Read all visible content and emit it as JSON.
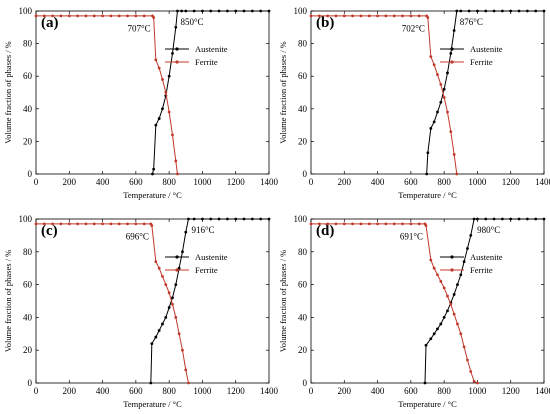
{
  "chart_data": [
    {
      "type": "line",
      "panel_label": "(a)",
      "xlabel": "Temperature / °C",
      "ylabel": "Volume fraction of phases / %",
      "xlim": [
        0,
        1400
      ],
      "ylim": [
        0,
        100
      ],
      "xticks": [
        0,
        200,
        400,
        600,
        800,
        1000,
        1200,
        1400
      ],
      "yticks": [
        0,
        20,
        40,
        60,
        80,
        100
      ],
      "legend_position": "top-right",
      "annotations": [
        {
          "text": "707°C",
          "x": 707,
          "y": 96
        },
        {
          "text": "850°C",
          "x": 850,
          "y": 100
        }
      ],
      "series": [
        {
          "name": "Austenite",
          "color": "#000000",
          "x": [
            700,
            707,
            720,
            740,
            760,
            780,
            800,
            820,
            840,
            850,
            875,
            900,
            950,
            1000,
            1050,
            1100,
            1150,
            1200,
            1250,
            1300,
            1350,
            1400
          ],
          "y": [
            0,
            3,
            30,
            34,
            40,
            48,
            60,
            74,
            90,
            100,
            100,
            100,
            100,
            100,
            100,
            100,
            100,
            100,
            100,
            100,
            100,
            100
          ]
        },
        {
          "name": "Ferrite",
          "color": "#c0392b",
          "x": [
            0,
            50,
            100,
            150,
            200,
            250,
            300,
            350,
            400,
            450,
            500,
            550,
            600,
            650,
            700,
            707,
            720,
            740,
            760,
            780,
            800,
            820,
            840,
            850
          ],
          "y": [
            97,
            97,
            97,
            97,
            97,
            97,
            97,
            97,
            97,
            97,
            97,
            97,
            97,
            97,
            97,
            96,
            70,
            65,
            58,
            50,
            38,
            24,
            8,
            0
          ]
        }
      ]
    },
    {
      "type": "line",
      "panel_label": "(b)",
      "xlabel": "Temperature / °C",
      "ylabel": "Volume fraction of phases / %",
      "xlim": [
        0,
        1400
      ],
      "ylim": [
        0,
        100
      ],
      "xticks": [
        0,
        200,
        400,
        600,
        800,
        1000,
        1200,
        1400
      ],
      "yticks": [
        0,
        20,
        40,
        60,
        80,
        100
      ],
      "legend_position": "top-right",
      "annotations": [
        {
          "text": "702°C",
          "x": 702,
          "y": 96
        },
        {
          "text": "876°C",
          "x": 876,
          "y": 100
        }
      ],
      "series": [
        {
          "name": "Austenite",
          "color": "#000000",
          "x": [
            695,
            702,
            720,
            740,
            760,
            780,
            800,
            820,
            840,
            860,
            876,
            900,
            950,
            1000,
            1050,
            1100,
            1150,
            1200,
            1250,
            1300,
            1350,
            1400
          ],
          "y": [
            0,
            13,
            28,
            32,
            38,
            44,
            52,
            62,
            74,
            88,
            100,
            100,
            100,
            100,
            100,
            100,
            100,
            100,
            100,
            100,
            100,
            100
          ]
        },
        {
          "name": "Ferrite",
          "color": "#c0392b",
          "x": [
            0,
            50,
            100,
            150,
            200,
            250,
            300,
            350,
            400,
            450,
            500,
            550,
            600,
            650,
            695,
            702,
            720,
            740,
            760,
            780,
            800,
            820,
            840,
            860,
            876
          ],
          "y": [
            97,
            97,
            97,
            97,
            97,
            97,
            97,
            97,
            97,
            97,
            97,
            97,
            97,
            97,
            97,
            96,
            72,
            67,
            61,
            55,
            47,
            38,
            26,
            12,
            0
          ]
        }
      ]
    },
    {
      "type": "line",
      "panel_label": "(c)",
      "xlabel": "Temperature / °C",
      "ylabel": "Volume fraction of phases / %",
      "xlim": [
        0,
        1400
      ],
      "ylim": [
        0,
        100
      ],
      "xticks": [
        0,
        200,
        400,
        600,
        800,
        1000,
        1200,
        1400
      ],
      "yticks": [
        0,
        20,
        40,
        60,
        80,
        100
      ],
      "legend_position": "top-right",
      "annotations": [
        {
          "text": "696°C",
          "x": 696,
          "y": 96
        },
        {
          "text": "916°C",
          "x": 916,
          "y": 100
        }
      ],
      "series": [
        {
          "name": "Austenite",
          "color": "#000000",
          "x": [
            690,
            696,
            720,
            740,
            760,
            780,
            800,
            820,
            840,
            860,
            880,
            900,
            916,
            950,
            1000,
            1050,
            1100,
            1150,
            1200,
            1250,
            1300,
            1350,
            1400
          ],
          "y": [
            0,
            24,
            28,
            32,
            36,
            40,
            46,
            52,
            60,
            70,
            80,
            92,
            100,
            100,
            100,
            100,
            100,
            100,
            100,
            100,
            100,
            100,
            100
          ]
        },
        {
          "name": "Ferrite",
          "color": "#c0392b",
          "x": [
            0,
            50,
            100,
            150,
            200,
            250,
            300,
            350,
            400,
            450,
            500,
            550,
            600,
            650,
            690,
            696,
            720,
            740,
            760,
            780,
            800,
            820,
            840,
            860,
            880,
            900,
            916
          ],
          "y": [
            97,
            97,
            97,
            97,
            97,
            97,
            97,
            97,
            97,
            97,
            97,
            97,
            97,
            97,
            97,
            96,
            74,
            70,
            65,
            60,
            55,
            48,
            40,
            30,
            20,
            8,
            0
          ]
        }
      ]
    },
    {
      "type": "line",
      "panel_label": "(d)",
      "xlabel": "Temperature / °C",
      "ylabel": "Volume fraction of phases / %",
      "xlim": [
        0,
        1400
      ],
      "ylim": [
        0,
        100
      ],
      "xticks": [
        0,
        200,
        400,
        600,
        800,
        1000,
        1200,
        1400
      ],
      "yticks": [
        0,
        20,
        40,
        60,
        80,
        100
      ],
      "legend_position": "top-right",
      "annotations": [
        {
          "text": "691°C",
          "x": 691,
          "y": 96
        },
        {
          "text": "980°C",
          "x": 980,
          "y": 100
        }
      ],
      "series": [
        {
          "name": "Austenite",
          "color": "#000000",
          "x": [
            685,
            691,
            720,
            740,
            760,
            780,
            800,
            820,
            840,
            860,
            880,
            900,
            920,
            940,
            960,
            980,
            1000,
            1050,
            1100,
            1150,
            1200,
            1250,
            1300,
            1350,
            1400
          ],
          "y": [
            0,
            23,
            27,
            30,
            33,
            36,
            40,
            44,
            49,
            54,
            60,
            66,
            74,
            82,
            90,
            100,
            100,
            100,
            100,
            100,
            100,
            100,
            100,
            100,
            100
          ]
        },
        {
          "name": "Ferrite",
          "color": "#c0392b",
          "x": [
            0,
            50,
            100,
            150,
            200,
            250,
            300,
            350,
            400,
            450,
            500,
            550,
            600,
            650,
            685,
            691,
            720,
            740,
            760,
            780,
            800,
            820,
            840,
            860,
            880,
            900,
            920,
            940,
            960,
            980,
            1000
          ],
          "y": [
            97,
            97,
            97,
            97,
            97,
            97,
            97,
            97,
            97,
            97,
            97,
            97,
            97,
            97,
            97,
            96,
            75,
            70,
            66,
            62,
            58,
            53,
            48,
            42,
            36,
            30,
            22,
            14,
            7,
            1,
            0
          ]
        }
      ]
    }
  ]
}
